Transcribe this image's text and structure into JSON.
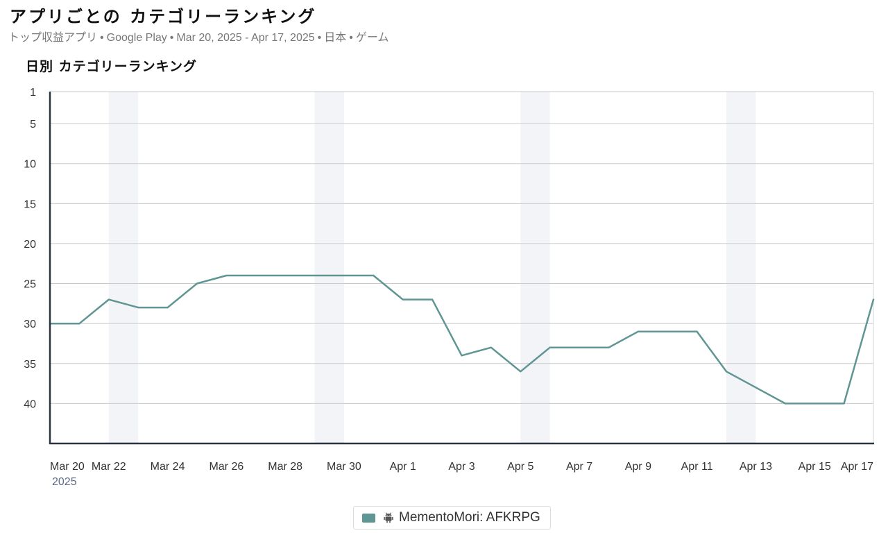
{
  "header": {
    "title": "アプリごとの カテゴリーランキング",
    "subtitle_parts": [
      "トップ収益アプリ",
      "Google Play",
      "Mar 20, 2025 - Apr 17, 2025",
      "日本",
      "ゲーム"
    ],
    "separator": "•"
  },
  "chart_title": "日別 カテゴリーランキング",
  "legend": {
    "label": "MementoMori: AFKRPG",
    "icon": "android-icon"
  },
  "chart_data": {
    "type": "line",
    "title": "日別 カテゴリーランキング",
    "xlabel": "",
    "ylabel": "",
    "y_inverted": true,
    "ylim": [
      1,
      45
    ],
    "y_ticks": [
      1,
      5,
      10,
      15,
      20,
      25,
      30,
      35,
      40
    ],
    "grid": true,
    "legend_position": "bottom-center",
    "x_ticks": [
      "Mar 20",
      "Mar 22",
      "Mar 24",
      "Mar 26",
      "Mar 28",
      "Mar 30",
      "Apr 1",
      "Apr 3",
      "Apr 5",
      "Apr 7",
      "Apr 9",
      "Apr 11",
      "Apr 13",
      "Apr 15",
      "Apr 17"
    ],
    "x_year_label": "2025",
    "weekend_bands": [
      [
        "Mar 22",
        "Mar 23"
      ],
      [
        "Mar 29",
        "Mar 30"
      ],
      [
        "Apr 5",
        "Apr 6"
      ],
      [
        "Apr 12",
        "Apr 13"
      ]
    ],
    "x": [
      "Mar 20",
      "Mar 21",
      "Mar 22",
      "Mar 23",
      "Mar 24",
      "Mar 25",
      "Mar 26",
      "Mar 27",
      "Mar 28",
      "Mar 29",
      "Mar 30",
      "Mar 31",
      "Apr 1",
      "Apr 2",
      "Apr 3",
      "Apr 4",
      "Apr 5",
      "Apr 6",
      "Apr 7",
      "Apr 8",
      "Apr 9",
      "Apr 10",
      "Apr 11",
      "Apr 12",
      "Apr 13",
      "Apr 14",
      "Apr 15",
      "Apr 16",
      "Apr 17"
    ],
    "series": [
      {
        "name": "MementoMori: AFKRPG",
        "color": "#5f9593",
        "values": [
          30,
          30,
          27,
          28,
          28,
          25,
          24,
          24,
          24,
          24,
          24,
          24,
          27,
          27,
          34,
          33,
          36,
          33,
          33,
          33,
          31,
          31,
          31,
          36,
          38,
          40,
          40,
          40,
          27
        ]
      }
    ]
  },
  "colors": {
    "line": "#5f9593",
    "band": "#f2f4f7",
    "grid": "#c9c9c9",
    "axis": "#2b3340",
    "year": "#5b6b88"
  }
}
